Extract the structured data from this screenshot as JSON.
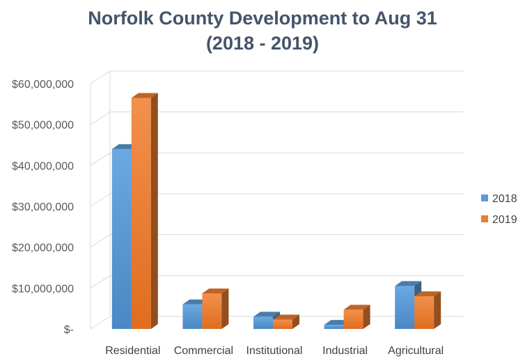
{
  "chart_data": {
    "type": "bar",
    "title_line1": "Norfolk County Development to Aug 31",
    "title_line2": "(2018 - 2019)",
    "categories": [
      "Residential",
      "Commercial",
      "Institutional",
      "Industrial",
      "Agricultural"
    ],
    "series": [
      {
        "name": "2018",
        "values": [
          44000000,
          6000000,
          3000000,
          1000000,
          10500000
        ],
        "color": "#5b9bd5"
      },
      {
        "name": "2019",
        "values": [
          56500000,
          8700000,
          2300000,
          4700000,
          8000000
        ],
        "color": "#ed7d31"
      }
    ],
    "yticks": [
      "$-",
      "$10,000,000",
      "$20,000,000",
      "$30,000,000",
      "$40,000,000",
      "$50,000,000",
      "$60,000,000"
    ],
    "ylim": [
      0,
      60000000
    ],
    "grid": true,
    "legend_position": "right",
    "style": "3d-clustered-column"
  }
}
